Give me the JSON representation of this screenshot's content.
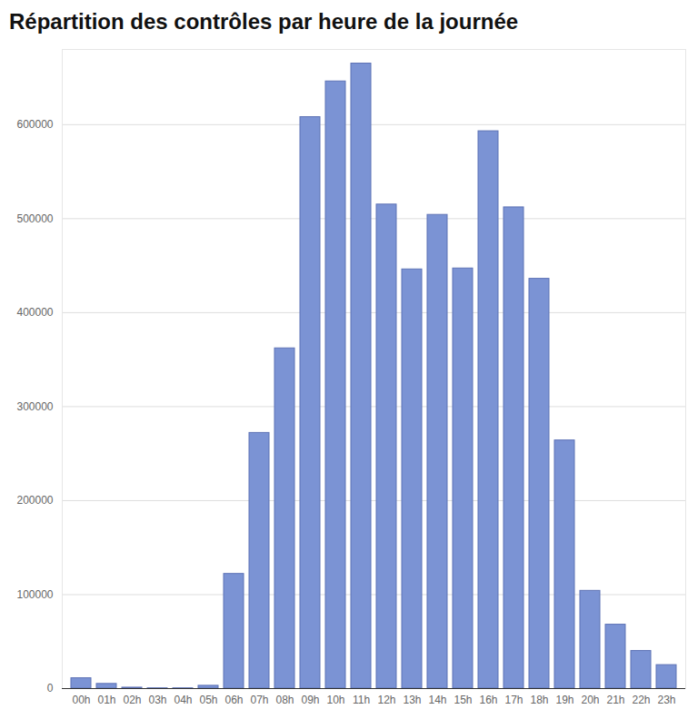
{
  "chart_data": {
    "type": "bar",
    "title": "Répartition des contrôles par heure de la journée",
    "categories": [
      "00h",
      "01h",
      "02h",
      "03h",
      "04h",
      "05h",
      "06h",
      "07h",
      "08h",
      "09h",
      "10h",
      "11h",
      "12h",
      "13h",
      "14h",
      "15h",
      "16h",
      "17h",
      "18h",
      "19h",
      "20h",
      "21h",
      "22h",
      "23h"
    ],
    "values": [
      11000,
      5000,
      1000,
      300,
      300,
      3000,
      122000,
      272000,
      362000,
      608000,
      646000,
      665000,
      515000,
      446000,
      504000,
      447000,
      593000,
      512000,
      436000,
      264000,
      104000,
      68000,
      40000,
      25000
    ],
    "color": "#7b93d4",
    "ylim": [
      0,
      680000
    ],
    "yticks": [
      0,
      100000,
      200000,
      300000,
      400000,
      500000,
      600000
    ],
    "grid": true
  }
}
